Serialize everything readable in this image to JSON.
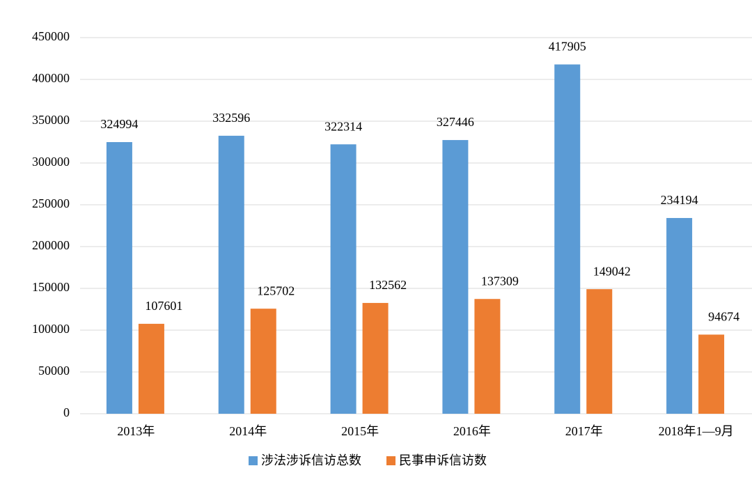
{
  "chart_data": {
    "type": "bar",
    "categories": [
      "2013年",
      "2014年",
      "2015年",
      "2016年",
      "2017年",
      "2018年1—9月"
    ],
    "series": [
      {
        "name": "涉法涉诉信访总数",
        "color": "#5b9bd5",
        "values": [
          324994,
          332596,
          322314,
          327446,
          417905,
          234194
        ]
      },
      {
        "name": "民事申诉信访数",
        "color": "#ed7d31",
        "values": [
          107601,
          125702,
          132562,
          137309,
          149042,
          94674
        ]
      }
    ],
    "ylim": [
      0,
      450000
    ],
    "yticks": [
      0,
      50000,
      100000,
      150000,
      200000,
      250000,
      300000,
      350000,
      400000,
      450000
    ],
    "grid": true,
    "legend": "bottom"
  }
}
